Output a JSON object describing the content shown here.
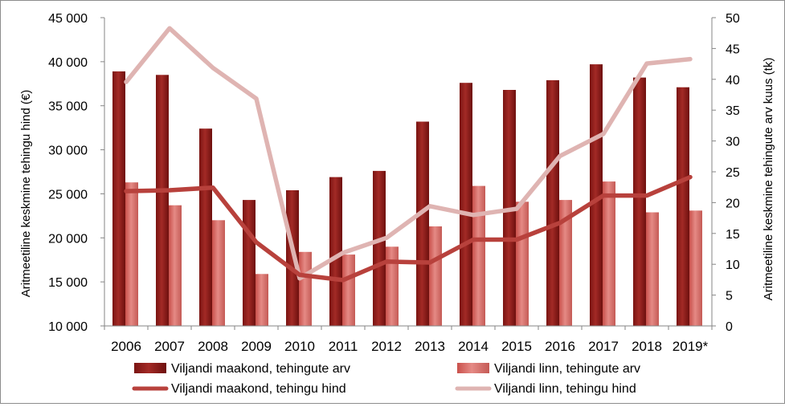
{
  "chart_data": {
    "type": "bar",
    "categories": [
      "2006",
      "2007",
      "2008",
      "2009",
      "2010",
      "2011",
      "2012",
      "2013",
      "2014",
      "2015",
      "2016",
      "2017",
      "2018",
      "2019*"
    ],
    "ylabel_left": "Aritmeetiline keskmine tehingu hind (€)",
    "ylabel_right": "Aritmeetiline keskmine tehingute arv kuus (tk)",
    "left_axis": {
      "min": 10000,
      "max": 45000,
      "step": 5000,
      "ticks": [
        "10 000",
        "15 000",
        "20 000",
        "25 000",
        "30 000",
        "35 000",
        "40 000",
        "45 000"
      ]
    },
    "right_axis": {
      "min": 0,
      "max": 50,
      "step": 5,
      "ticks": [
        "0",
        "5",
        "10",
        "15",
        "20",
        "25",
        "30",
        "35",
        "40",
        "45",
        "50"
      ]
    },
    "series": [
      {
        "name": "Viljandi maakond, tehingute arv",
        "kind": "bar",
        "axis": "left",
        "color": "#8b1a1a",
        "values": [
          38900,
          38500,
          32400,
          24300,
          25400,
          26900,
          27600,
          33200,
          37600,
          36800,
          37900,
          39700,
          38200,
          37100
        ]
      },
      {
        "name": "Viljandi linn, tehingute arv",
        "kind": "bar",
        "axis": "left",
        "color": "#d9706b",
        "values": [
          26300,
          23700,
          22000,
          15900,
          18400,
          18100,
          19000,
          21300,
          25900,
          24100,
          24300,
          26400,
          22900,
          23100
        ]
      },
      {
        "name": "Viljandi maakond, tehingu hind",
        "kind": "line",
        "axis": "left",
        "color": "#b8413c",
        "values": [
          25300,
          25400,
          25700,
          19500,
          15800,
          15200,
          17300,
          17200,
          19800,
          19800,
          21700,
          24800,
          24800,
          26900
        ]
      },
      {
        "name": "Viljandi linn, tehingu hind",
        "kind": "line",
        "axis": "left",
        "color": "#dfb4b2",
        "values": [
          37700,
          43800,
          39300,
          35800,
          15400,
          18300,
          20000,
          23600,
          22600,
          23300,
          29300,
          31800,
          39800,
          40300
        ]
      }
    ],
    "legend_position": "bottom",
    "grid": false
  }
}
